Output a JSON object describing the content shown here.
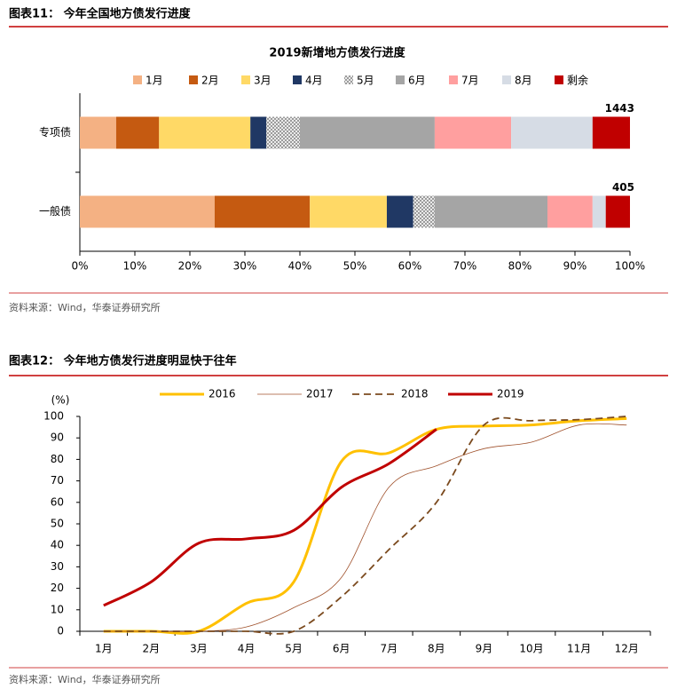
{
  "figures": [
    {
      "title": "图表11：  今年全国地方债发行进度",
      "source": "资料来源：Wind，华泰证券研究所"
    },
    {
      "title": "图表12：  今年地方债发行进度明显快于往年",
      "source": "资料来源：Wind，华泰证券研究所"
    }
  ],
  "chart_data": [
    {
      "type": "stacked-barh",
      "title": "2019新增地方债发行进度",
      "categories": [
        "专项债",
        "一般债"
      ],
      "series": [
        {
          "name": "1月",
          "color": "#f4b183",
          "values": [
            6.6,
            24.5
          ]
        },
        {
          "name": "2月",
          "color": "#c55a11",
          "values": [
            7.8,
            17.3
          ]
        },
        {
          "name": "3月",
          "color": "#ffd966",
          "values": [
            16.6,
            14.0
          ]
        },
        {
          "name": "4月",
          "color": "#203864",
          "values": [
            2.9,
            4.8
          ]
        },
        {
          "name": "5月",
          "color": "#ffffff",
          "pattern": "hatch",
          "values": [
            6.1,
            3.9
          ]
        },
        {
          "name": "6月",
          "color": "#a5a5a5",
          "values": [
            24.5,
            20.5
          ]
        },
        {
          "name": "7月",
          "color": "#ff9f9f",
          "values": [
            13.9,
            8.2
          ]
        },
        {
          "name": "8月",
          "color": "#d6dce5",
          "values": [
            14.8,
            2.4
          ]
        },
        {
          "name": "剩余",
          "color": "#c00000",
          "values": [
            6.8,
            4.4
          ]
        }
      ],
      "annotations": [
        "1443",
        "405"
      ],
      "xlim": [
        0,
        100
      ],
      "xticks": [
        {
          "value": 0,
          "label": "0%"
        },
        {
          "value": 10,
          "label": "10%"
        },
        {
          "value": 20,
          "label": "20%"
        },
        {
          "value": 30,
          "label": "30%"
        },
        {
          "value": 40,
          "label": "40%"
        },
        {
          "value": 50,
          "label": "50%"
        },
        {
          "value": 60,
          "label": "60%"
        },
        {
          "value": 70,
          "label": "70%"
        },
        {
          "value": 80,
          "label": "80%"
        },
        {
          "value": 90,
          "label": "90%"
        },
        {
          "value": 100,
          "label": "100%"
        }
      ],
      "legend": "top"
    },
    {
      "type": "line",
      "y_label": "(%)",
      "categories": [
        "1月",
        "2月",
        "3月",
        "4月",
        "5月",
        "6月",
        "7月",
        "8月",
        "9月",
        "10月",
        "11月",
        "12月"
      ],
      "series": [
        {
          "name": "2016",
          "color": "#ffc000",
          "line_width": 3,
          "values": [
            0,
            0,
            0,
            13,
            23,
            79,
            83,
            94,
            95.5,
            96,
            98,
            99
          ]
        },
        {
          "name": "2017",
          "color": "#a0522d",
          "line_width": 0.8,
          "values": [
            0,
            0,
            0,
            2,
            11,
            25,
            67,
            77,
            85,
            88,
            96,
            96
          ]
        },
        {
          "name": "2018",
          "color": "#7b4a1e",
          "line_width": 1.8,
          "dashed": true,
          "values": [
            0,
            0,
            0,
            0,
            0,
            16,
            38,
            60,
            96,
            98,
            98.5,
            100
          ]
        },
        {
          "name": "2019",
          "color": "#c00000",
          "line_width": 3,
          "values": [
            12,
            23,
            41,
            43,
            47,
            67,
            78,
            94,
            null,
            null,
            null,
            null
          ]
        }
      ],
      "ylim": [
        0,
        100
      ],
      "yticks": [
        0,
        10,
        20,
        30,
        40,
        50,
        60,
        70,
        80,
        90,
        100
      ],
      "legend": "top"
    }
  ]
}
